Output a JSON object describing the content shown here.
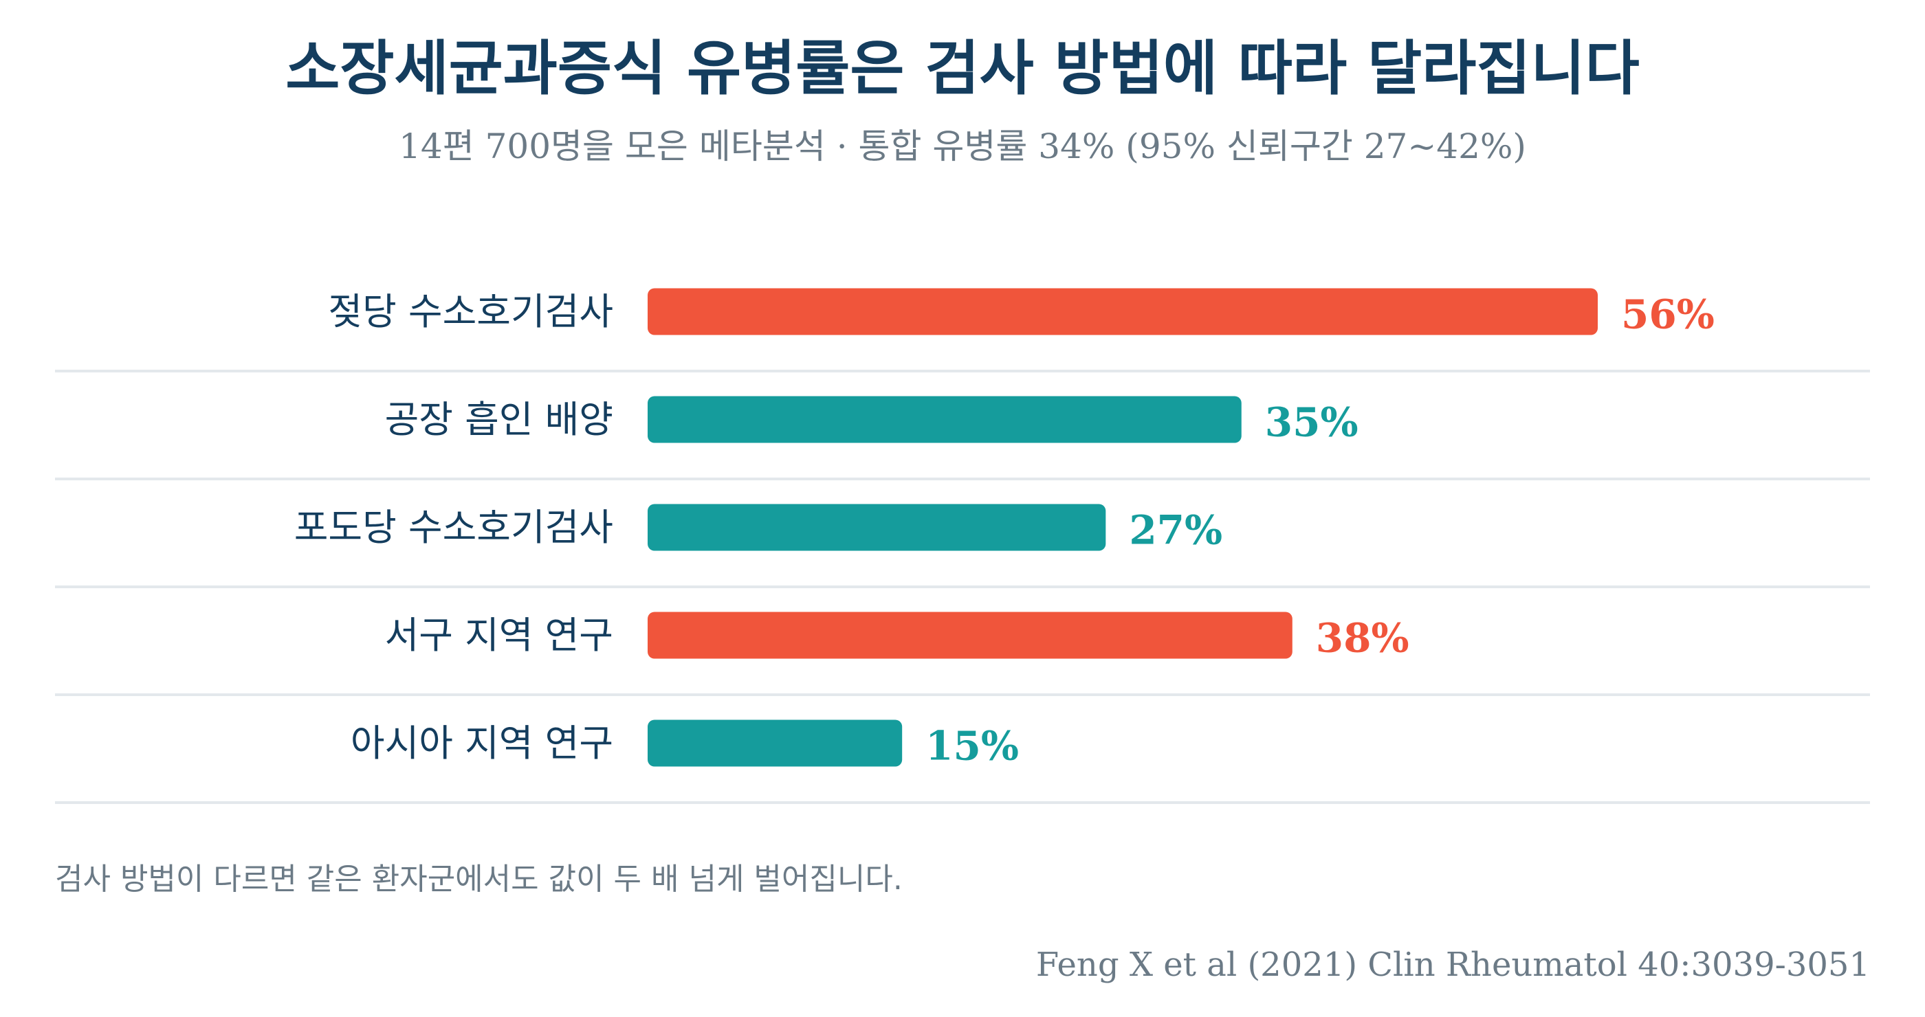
{
  "header": {
    "title": "소장세균과증식 유병률은 검사 방법에 따라 달라집니다",
    "subtitle": "14편 700명을 모은 메타분석 · 통합 유병률 34% (95% 신뢰구간 27~42%)"
  },
  "footer": {
    "note": "검사 방법이 다르면 같은 환자군에서도 값이 두 배 넘게 벌어집니다.",
    "source": "Feng X et al (2021) Clin Rheumatol 40:3039-3051"
  },
  "colors": {
    "highlight": "#f0553b",
    "normal": "#159c9c",
    "category_text": "#143d5e",
    "divider": "#e3e8ec"
  },
  "chart_data": {
    "type": "bar",
    "orientation": "horizontal",
    "categories": [
      "젖당 수소호기검사",
      "공장 흡인 배양",
      "포도당 수소호기검사",
      "서구 지역 연구",
      "아시아 지역 연구"
    ],
    "values": [
      56,
      35,
      27,
      38,
      15
    ],
    "value_labels": [
      "56%",
      "35%",
      "27%",
      "38%",
      "15%"
    ],
    "highlighted": [
      true,
      false,
      false,
      true,
      false
    ],
    "unit": "%",
    "xlim": [
      0,
      56
    ],
    "grid": false
  }
}
